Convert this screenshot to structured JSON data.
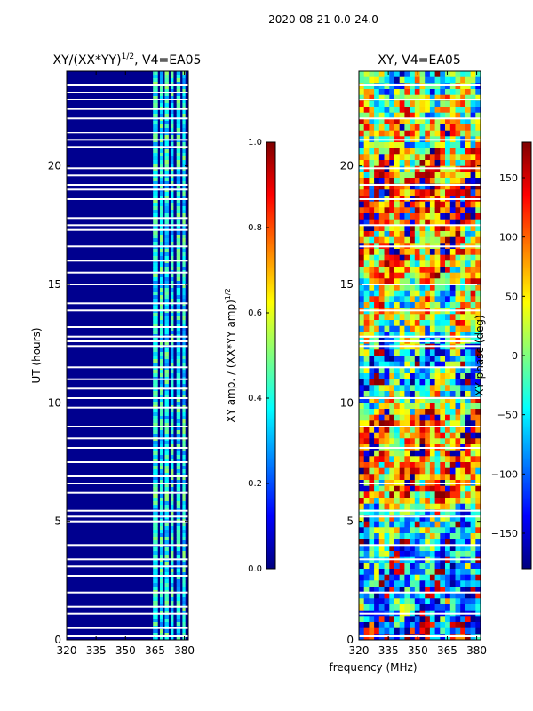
{
  "figure": {
    "suptitle": "2020-08-21 0.0-24.0"
  },
  "colors": {
    "jet": [
      "#00007f",
      "#0000ff",
      "#007fff",
      "#00ffff",
      "#7fff7f",
      "#ffff00",
      "#ff7f00",
      "#ff0000",
      "#7f0000"
    ],
    "dark_blue_bg": "#00008f",
    "gap": "#ffffff",
    "axis": "#000000"
  },
  "chart_data": [
    {
      "type": "heatmap",
      "title": "XY/(XX*YY)",
      "title_superscript": "1/2",
      "title_suffix": ", V4=EA05",
      "xlabel": "",
      "ylabel": "UT (hours)",
      "xlim": [
        320,
        382
      ],
      "ylim": [
        0,
        24
      ],
      "xticks": [
        "320",
        "335",
        "350",
        "365",
        "380"
      ],
      "yticks": [
        "0",
        "5",
        "10",
        "15",
        "20"
      ],
      "colorbar": {
        "label": "XY amp. / (XX*YY amp)",
        "label_superscript": "1/2",
        "range": [
          0.0,
          1.0
        ],
        "ticks": [
          "0.0",
          "0.2",
          "0.4",
          "0.6",
          "0.8",
          "1.0"
        ]
      },
      "data_gap_hours": [
        0.15,
        0.5,
        1.1,
        1.4,
        2.0,
        2.7,
        3.1,
        3.4,
        4.0,
        5.0,
        5.2,
        5.45,
        6.2,
        6.6,
        6.9,
        7.5,
        8.1,
        8.5,
        9.0,
        9.8,
        10.2,
        10.6,
        11.0,
        11.5,
        12.4,
        12.6,
        12.8,
        13.2,
        13.9,
        14.2,
        15.0,
        15.5,
        16.0,
        16.6,
        17.3,
        17.5,
        17.8,
        18.6,
        19.0,
        19.2,
        19.6,
        19.9,
        20.8,
        21.1,
        21.4,
        22.0,
        22.4,
        22.8,
        23.1,
        23.4
      ],
      "bright_channels_mhz": [
        [
          364,
          366.5
        ],
        [
          367.5,
          369
        ],
        [
          370,
          372
        ],
        [
          373,
          374.5
        ],
        [
          376,
          378
        ],
        [
          379,
          380.5
        ]
      ]
    },
    {
      "type": "heatmap",
      "title": "XY, V4=EA05",
      "xlabel": "frequency (MHz)",
      "ylabel": "",
      "xlim": [
        320,
        382
      ],
      "ylim": [
        0,
        24
      ],
      "xticks": [
        "320",
        "335",
        "350",
        "365",
        "380"
      ],
      "yticks": [
        "0",
        "5",
        "10",
        "15",
        "20"
      ],
      "colorbar": {
        "label": "XY phase (deg)",
        "range": [
          -180,
          180
        ],
        "ticks": [
          "150",
          "100",
          "50",
          "0",
          "−50",
          "−100",
          "−150"
        ],
        "tick_values": [
          150,
          100,
          50,
          0,
          -50,
          -100,
          -150
        ]
      },
      "data_gap_hours": [
        0.15,
        1.1,
        2.0,
        3.4,
        4.0,
        5.2,
        5.45,
        6.6,
        8.1,
        9.0,
        10.2,
        11.5,
        12.4,
        12.6,
        12.8,
        13.9,
        15.0,
        16.6,
        17.5,
        18.6,
        19.2,
        19.9,
        21.1,
        22.0,
        22.8,
        23.4
      ]
    }
  ]
}
